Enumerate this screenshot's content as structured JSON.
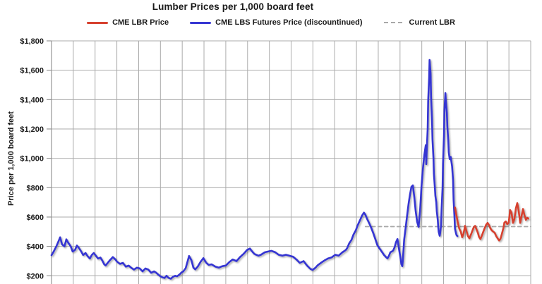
{
  "title": "Lumber Prices per 1,000 board feet",
  "legend": [
    {
      "label": "CME LBR Price",
      "color": "#d6402e",
      "style": "solid"
    },
    {
      "label": "CME LBS Futures Price (discountinued)",
      "color": "#3636d2",
      "style": "solid"
    },
    {
      "label": "Current LBR",
      "color": "#a9a9a9",
      "style": "dashed"
    }
  ],
  "colors": {
    "lbr_red": "#d6402e",
    "lbs_blue": "#3636d2",
    "current_dash_gray": "#a9a9a9",
    "gridline_gray": "#ababab",
    "axis_gray": "#808080",
    "text": "#1a1a1a"
  },
  "chart_data": {
    "type": "line",
    "title": "Lumber Prices per 1,000 board feet",
    "xlabel": "",
    "ylabel": "Price per 1,000 board feet",
    "ylim": [
      200,
      1800
    ],
    "grid": true,
    "legend_position": "top",
    "x_gridline_count": 22,
    "y_ticks": [
      {
        "value": 1800,
        "label": "$1,800"
      },
      {
        "value": 1600,
        "label": "$1,600"
      },
      {
        "value": 1400,
        "label": "$1,400"
      },
      {
        "value": 1200,
        "label": "$1,200"
      },
      {
        "value": 1000,
        "label": "$1,000"
      },
      {
        "value": 800,
        "label": "$800"
      },
      {
        "value": 600,
        "label": "$600"
      },
      {
        "value": 400,
        "label": "$400"
      },
      {
        "value": 200,
        "label": "$200"
      }
    ],
    "series": [
      {
        "name": "Current LBR",
        "color": "#a9a9a9",
        "dashed": true,
        "points": [
          [
            0.655,
            535
          ],
          [
            1.0,
            535
          ]
        ]
      },
      {
        "name": "CME LBS Futures Price (discountinued)",
        "color": "#3636d2",
        "dashed": false,
        "points": [
          [
            0.0,
            340
          ],
          [
            0.004,
            362
          ],
          [
            0.01,
            400
          ],
          [
            0.015,
            438
          ],
          [
            0.018,
            462
          ],
          [
            0.022,
            414
          ],
          [
            0.027,
            400
          ],
          [
            0.031,
            448
          ],
          [
            0.035,
            424
          ],
          [
            0.04,
            400
          ],
          [
            0.044,
            365
          ],
          [
            0.049,
            376
          ],
          [
            0.053,
            406
          ],
          [
            0.057,
            390
          ],
          [
            0.062,
            365
          ],
          [
            0.066,
            341
          ],
          [
            0.071,
            355
          ],
          [
            0.075,
            335
          ],
          [
            0.08,
            317
          ],
          [
            0.084,
            341
          ],
          [
            0.088,
            355
          ],
          [
            0.093,
            335
          ],
          [
            0.097,
            317
          ],
          [
            0.102,
            324
          ],
          [
            0.106,
            303
          ],
          [
            0.11,
            278
          ],
          [
            0.113,
            270
          ],
          [
            0.121,
            303
          ],
          [
            0.128,
            327
          ],
          [
            0.133,
            312
          ],
          [
            0.137,
            295
          ],
          [
            0.143,
            281
          ],
          [
            0.149,
            288
          ],
          [
            0.155,
            262
          ],
          [
            0.161,
            269
          ],
          [
            0.166,
            255
          ],
          [
            0.172,
            242
          ],
          [
            0.178,
            255
          ],
          [
            0.184,
            250
          ],
          [
            0.19,
            230
          ],
          [
            0.196,
            250
          ],
          [
            0.202,
            242
          ],
          [
            0.208,
            220
          ],
          [
            0.214,
            230
          ],
          [
            0.218,
            222
          ],
          [
            0.222,
            210
          ],
          [
            0.227,
            197
          ],
          [
            0.231,
            190
          ],
          [
            0.236,
            185
          ],
          [
            0.24,
            200
          ],
          [
            0.244,
            186
          ],
          [
            0.249,
            180
          ],
          [
            0.253,
            192
          ],
          [
            0.258,
            200
          ],
          [
            0.262,
            196
          ],
          [
            0.267,
            208
          ],
          [
            0.271,
            222
          ],
          [
            0.275,
            230
          ],
          [
            0.28,
            252
          ],
          [
            0.283,
            288
          ],
          [
            0.287,
            335
          ],
          [
            0.292,
            305
          ],
          [
            0.296,
            255
          ],
          [
            0.3,
            243
          ],
          [
            0.305,
            262
          ],
          [
            0.311,
            295
          ],
          [
            0.317,
            320
          ],
          [
            0.323,
            288
          ],
          [
            0.328,
            274
          ],
          [
            0.334,
            278
          ],
          [
            0.342,
            262
          ],
          [
            0.349,
            255
          ],
          [
            0.356,
            265
          ],
          [
            0.364,
            270
          ],
          [
            0.371,
            293
          ],
          [
            0.378,
            311
          ],
          [
            0.386,
            300
          ],
          [
            0.393,
            326
          ],
          [
            0.401,
            350
          ],
          [
            0.408,
            375
          ],
          [
            0.414,
            386
          ],
          [
            0.418,
            368
          ],
          [
            0.423,
            350
          ],
          [
            0.427,
            343
          ],
          [
            0.432,
            337
          ],
          [
            0.437,
            343
          ],
          [
            0.445,
            360
          ],
          [
            0.452,
            365
          ],
          [
            0.459,
            370
          ],
          [
            0.467,
            360
          ],
          [
            0.474,
            343
          ],
          [
            0.482,
            337
          ],
          [
            0.489,
            343
          ],
          [
            0.496,
            337
          ],
          [
            0.504,
            330
          ],
          [
            0.511,
            311
          ],
          [
            0.518,
            288
          ],
          [
            0.526,
            300
          ],
          [
            0.533,
            270
          ],
          [
            0.54,
            247
          ],
          [
            0.545,
            240
          ],
          [
            0.551,
            255
          ],
          [
            0.555,
            270
          ],
          [
            0.563,
            290
          ],
          [
            0.57,
            305
          ],
          [
            0.577,
            318
          ],
          [
            0.585,
            326
          ],
          [
            0.592,
            343
          ],
          [
            0.599,
            337
          ],
          [
            0.607,
            360
          ],
          [
            0.614,
            375
          ],
          [
            0.617,
            388
          ],
          [
            0.621,
            420
          ],
          [
            0.626,
            445
          ],
          [
            0.63,
            480
          ],
          [
            0.635,
            510
          ],
          [
            0.639,
            545
          ],
          [
            0.644,
            580
          ],
          [
            0.648,
            610
          ],
          [
            0.652,
            630
          ],
          [
            0.655,
            616
          ],
          [
            0.658,
            591
          ],
          [
            0.663,
            557
          ],
          [
            0.667,
            528
          ],
          [
            0.672,
            485
          ],
          [
            0.676,
            447
          ],
          [
            0.68,
            408
          ],
          [
            0.685,
            384
          ],
          [
            0.689,
            365
          ],
          [
            0.694,
            341
          ],
          [
            0.698,
            327
          ],
          [
            0.701,
            318
          ],
          [
            0.704,
            335
          ],
          [
            0.707,
            360
          ],
          [
            0.71,
            365
          ],
          [
            0.713,
            372
          ],
          [
            0.716,
            395
          ],
          [
            0.719,
            430
          ],
          [
            0.722,
            450
          ],
          [
            0.725,
            384
          ],
          [
            0.728,
            327
          ],
          [
            0.73,
            280
          ],
          [
            0.732,
            265
          ],
          [
            0.733,
            300
          ],
          [
            0.736,
            447
          ],
          [
            0.739,
            528
          ],
          [
            0.742,
            608
          ],
          [
            0.745,
            689
          ],
          [
            0.748,
            752
          ],
          [
            0.751,
            805
          ],
          [
            0.754,
            816
          ],
          [
            0.757,
            737
          ],
          [
            0.76,
            640
          ],
          [
            0.763,
            567
          ],
          [
            0.766,
            533
          ],
          [
            0.769,
            640
          ],
          [
            0.772,
            806
          ],
          [
            0.775,
            927
          ],
          [
            0.778,
            1024
          ],
          [
            0.781,
            1090
          ],
          [
            0.782,
            960
          ],
          [
            0.783,
            1060
          ],
          [
            0.785,
            1200
          ],
          [
            0.786,
            1390
          ],
          [
            0.788,
            1550
          ],
          [
            0.789,
            1670
          ],
          [
            0.791,
            1580
          ],
          [
            0.792,
            1420
          ],
          [
            0.794,
            1270
          ],
          [
            0.795,
            1130
          ],
          [
            0.797,
            1000
          ],
          [
            0.798,
            895
          ],
          [
            0.8,
            800
          ],
          [
            0.801,
            745
          ],
          [
            0.803,
            700
          ],
          [
            0.804,
            640
          ],
          [
            0.806,
            580
          ],
          [
            0.807,
            530
          ],
          [
            0.808,
            500
          ],
          [
            0.81,
            472
          ],
          [
            0.811,
            490
          ],
          [
            0.813,
            545
          ],
          [
            0.814,
            650
          ],
          [
            0.816,
            800
          ],
          [
            0.817,
            960
          ],
          [
            0.819,
            1150
          ],
          [
            0.82,
            1330
          ],
          [
            0.822,
            1445
          ],
          [
            0.823,
            1390
          ],
          [
            0.825,
            1310
          ],
          [
            0.826,
            1215
          ],
          [
            0.828,
            1120
          ],
          [
            0.829,
            1040
          ],
          [
            0.831,
            995
          ],
          [
            0.833,
            1010
          ],
          [
            0.836,
            945
          ],
          [
            0.838,
            850
          ],
          [
            0.839,
            720
          ],
          [
            0.841,
            600
          ],
          [
            0.842,
            520
          ],
          [
            0.844,
            490
          ],
          [
            0.845,
            478
          ],
          [
            0.847,
            470
          ]
        ]
      },
      {
        "name": "CME LBR Price",
        "color": "#d6402e",
        "dashed": false,
        "points": [
          [
            0.842,
            665
          ],
          [
            0.845,
            610
          ],
          [
            0.848,
            560
          ],
          [
            0.851,
            520
          ],
          [
            0.854,
            500
          ],
          [
            0.857,
            462
          ],
          [
            0.86,
            488
          ],
          [
            0.863,
            540
          ],
          [
            0.866,
            505
          ],
          [
            0.869,
            470
          ],
          [
            0.872,
            455
          ],
          [
            0.875,
            478
          ],
          [
            0.878,
            505
          ],
          [
            0.881,
            530
          ],
          [
            0.884,
            540
          ],
          [
            0.887,
            515
          ],
          [
            0.89,
            490
          ],
          [
            0.892,
            465
          ],
          [
            0.895,
            450
          ],
          [
            0.898,
            472
          ],
          [
            0.901,
            500
          ],
          [
            0.904,
            525
          ],
          [
            0.907,
            548
          ],
          [
            0.91,
            560
          ],
          [
            0.913,
            545
          ],
          [
            0.916,
            522
          ],
          [
            0.919,
            508
          ],
          [
            0.922,
            500
          ],
          [
            0.925,
            492
          ],
          [
            0.928,
            470
          ],
          [
            0.931,
            455
          ],
          [
            0.934,
            440
          ],
          [
            0.937,
            452
          ],
          [
            0.94,
            488
          ],
          [
            0.943,
            525
          ],
          [
            0.945,
            562
          ],
          [
            0.948,
            570
          ],
          [
            0.951,
            552
          ],
          [
            0.954,
            560
          ],
          [
            0.957,
            648
          ],
          [
            0.96,
            630
          ],
          [
            0.963,
            560
          ],
          [
            0.966,
            585
          ],
          [
            0.969,
            660
          ],
          [
            0.972,
            695
          ],
          [
            0.975,
            640
          ],
          [
            0.978,
            560
          ],
          [
            0.981,
            608
          ],
          [
            0.984,
            655
          ],
          [
            0.987,
            612
          ],
          [
            0.99,
            580
          ],
          [
            0.993,
            595
          ],
          [
            0.995,
            590
          ]
        ]
      }
    ]
  }
}
